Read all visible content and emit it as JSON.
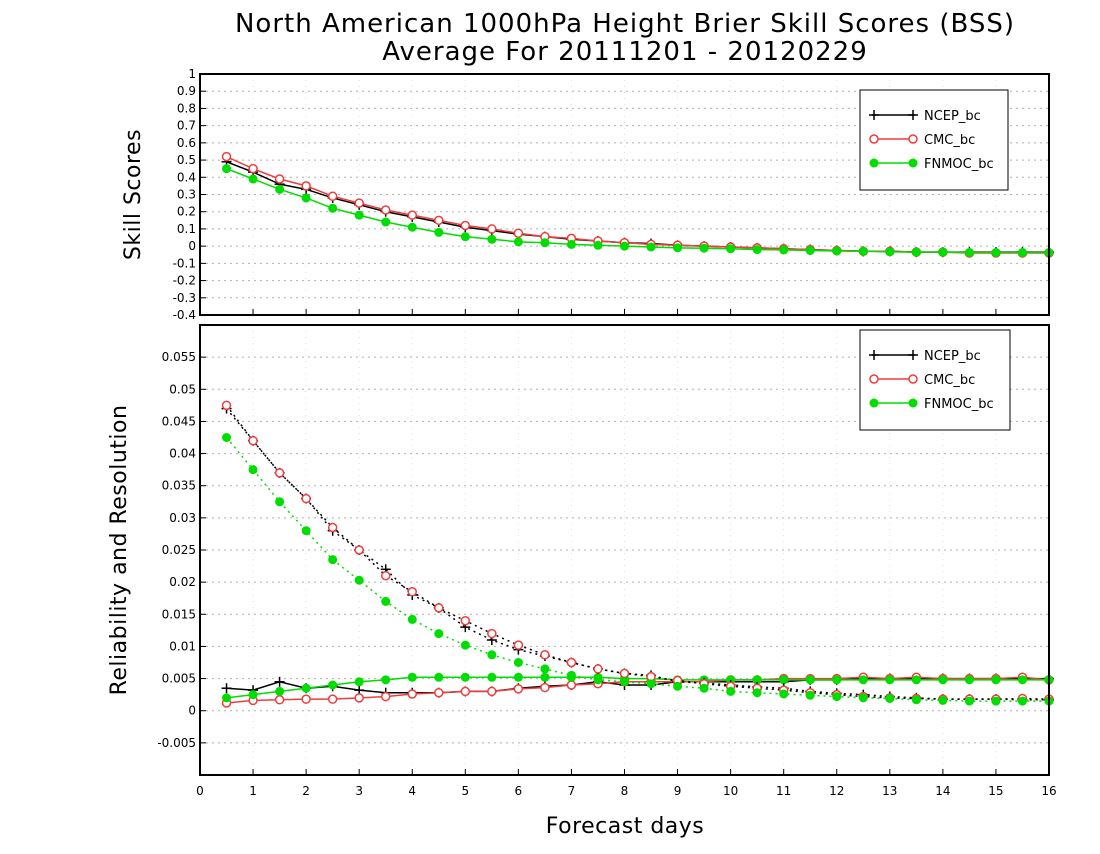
{
  "title": {
    "line1": "North American 1000hPa Height Brier Skill Scores (BSS)",
    "line2": "Average For 20111201 - 20120229"
  },
  "xaxis": {
    "label": "Forecast days",
    "range": [
      0,
      16
    ],
    "ticks": [
      "0",
      "1",
      "2",
      "3",
      "4",
      "5",
      "6",
      "7",
      "8",
      "9",
      "10",
      "11",
      "12",
      "13",
      "14",
      "15",
      "16"
    ]
  },
  "colors": {
    "NCEP_bc": "#000000",
    "CMC_bc": "#f03c3c",
    "FNMOC_bc": "#00dd00",
    "grid": "#b0b0b0"
  },
  "legend_entries": [
    "NCEP_bc",
    "CMC_bc",
    "FNMOC_bc"
  ],
  "chart_data": [
    {
      "type": "line",
      "ylabel": "Skill Scores",
      "xlim": [
        0,
        16
      ],
      "ylim": [
        -0.4,
        1
      ],
      "yticks": [
        "-0.4",
        "-0.3",
        "-0.2",
        "-0.1",
        "0",
        "0.1",
        "0.2",
        "0.3",
        "0.4",
        "0.5",
        "0.6",
        "0.7",
        "0.8",
        "0.9",
        "1"
      ],
      "grid": true,
      "legend": "top-right",
      "x": [
        0.5,
        1,
        1.5,
        2,
        2.5,
        3,
        3.5,
        4,
        4.5,
        5,
        5.5,
        6,
        6.5,
        7,
        7.5,
        8,
        8.5,
        9,
        9.5,
        10,
        10.5,
        11,
        11.5,
        12,
        12.5,
        13,
        13.5,
        14,
        14.5,
        15,
        15.5,
        16
      ],
      "series": [
        {
          "name": "NCEP_bc",
          "marker": "plus",
          "values": [
            0.49,
            0.43,
            0.36,
            0.33,
            0.28,
            0.24,
            0.2,
            0.17,
            0.14,
            0.11,
            0.09,
            0.07,
            0.055,
            0.04,
            0.03,
            0.02,
            0.015,
            0.005,
            0.0,
            -0.005,
            -0.01,
            -0.015,
            -0.02,
            -0.025,
            -0.03,
            -0.03,
            -0.035,
            -0.035,
            -0.035,
            -0.035,
            -0.035,
            -0.035
          ]
        },
        {
          "name": "CMC_bc",
          "marker": "open-circle",
          "values": [
            0.52,
            0.45,
            0.39,
            0.35,
            0.29,
            0.25,
            0.21,
            0.18,
            0.15,
            0.12,
            0.1,
            0.075,
            0.055,
            0.045,
            0.03,
            0.02,
            0.01,
            0.005,
            0.0,
            -0.005,
            -0.01,
            -0.015,
            -0.02,
            -0.025,
            -0.03,
            -0.03,
            -0.035,
            -0.035,
            -0.04,
            -0.04,
            -0.04,
            -0.04
          ]
        },
        {
          "name": "FNMOC_bc",
          "marker": "filled-circle",
          "values": [
            0.45,
            0.39,
            0.33,
            0.28,
            0.22,
            0.18,
            0.14,
            0.11,
            0.08,
            0.055,
            0.04,
            0.025,
            0.02,
            0.01,
            0.005,
            0.0,
            -0.005,
            -0.01,
            -0.012,
            -0.015,
            -0.02,
            -0.022,
            -0.025,
            -0.028,
            -0.03,
            -0.033,
            -0.035,
            -0.035,
            -0.037,
            -0.037,
            -0.037,
            -0.037
          ]
        }
      ]
    },
    {
      "type": "line",
      "ylabel": "Reliability and Resolution",
      "xlim": [
        0,
        16
      ],
      "ylim": [
        -0.01,
        0.06
      ],
      "yticks": [
        "-0.005",
        "0",
        "0.005",
        "0.01",
        "0.015",
        "0.02",
        "0.025",
        "0.03",
        "0.035",
        "0.04",
        "0.045",
        "0.05",
        "0.055"
      ],
      "grid": true,
      "legend": "top-right",
      "x": [
        0.5,
        1,
        1.5,
        2,
        2.5,
        3,
        3.5,
        4,
        4.5,
        5,
        5.5,
        6,
        6.5,
        7,
        7.5,
        8,
        8.5,
        9,
        9.5,
        10,
        10.5,
        11,
        11.5,
        12,
        12.5,
        13,
        13.5,
        14,
        14.5,
        15,
        15.5,
        16
      ],
      "series": [
        {
          "name": "NCEP_bc",
          "component": "reliability",
          "style": "solid",
          "marker": "plus",
          "values": [
            0.0035,
            0.0032,
            0.0045,
            0.0035,
            0.0038,
            0.0032,
            0.0028,
            0.0028,
            0.0028,
            0.003,
            0.003,
            0.0035,
            0.0038,
            0.004,
            0.0045,
            0.004,
            0.004,
            0.0045,
            0.0045,
            0.0045,
            0.0045,
            0.0045,
            0.0048,
            0.0048,
            0.005,
            0.005,
            0.005,
            0.005,
            0.005,
            0.005,
            0.005,
            0.005
          ]
        },
        {
          "name": "CMC_bc",
          "component": "reliability",
          "style": "solid",
          "marker": "open-circle",
          "values": [
            0.0012,
            0.0016,
            0.0017,
            0.0018,
            0.0018,
            0.002,
            0.0022,
            0.0026,
            0.0028,
            0.003,
            0.003,
            0.0034,
            0.0036,
            0.004,
            0.0042,
            0.0045,
            0.0045,
            0.0045,
            0.0045,
            0.0048,
            0.0048,
            0.005,
            0.005,
            0.005,
            0.0052,
            0.005,
            0.0052,
            0.005,
            0.005,
            0.005,
            0.0052,
            0.0048
          ]
        },
        {
          "name": "FNMOC_bc",
          "component": "reliability",
          "style": "solid",
          "marker": "filled-circle",
          "values": [
            0.002,
            0.0025,
            0.003,
            0.0035,
            0.004,
            0.0045,
            0.0048,
            0.0052,
            0.0052,
            0.0052,
            0.0052,
            0.0052,
            0.0052,
            0.0052,
            0.0052,
            0.005,
            0.005,
            0.0048,
            0.0048,
            0.0048,
            0.0048,
            0.0048,
            0.0048,
            0.0048,
            0.0048,
            0.0048,
            0.0048,
            0.0048,
            0.0048,
            0.0048,
            0.0048,
            0.0048
          ]
        },
        {
          "name": "NCEP_bc",
          "component": "resolution",
          "style": "dotted",
          "marker": "plus",
          "values": [
            0.047,
            0.042,
            0.037,
            0.033,
            0.028,
            0.025,
            0.022,
            0.018,
            0.016,
            0.013,
            0.011,
            0.0095,
            0.0085,
            0.0075,
            0.0065,
            0.0058,
            0.0055,
            0.0045,
            0.0043,
            0.004,
            0.0037,
            0.0035,
            0.003,
            0.0027,
            0.0025,
            0.0022,
            0.002,
            0.0018,
            0.0018,
            0.0018,
            0.0017,
            0.0017
          ]
        },
        {
          "name": "CMC_bc",
          "component": "resolution",
          "style": "dotted",
          "marker": "open-circle",
          "values": [
            0.0475,
            0.042,
            0.037,
            0.033,
            0.0285,
            0.025,
            0.021,
            0.0185,
            0.016,
            0.014,
            0.012,
            0.0102,
            0.0087,
            0.0075,
            0.0065,
            0.0058,
            0.0053,
            0.0047,
            0.0042,
            0.0038,
            0.0035,
            0.0032,
            0.0028,
            0.0025,
            0.0022,
            0.002,
            0.0019,
            0.0018,
            0.0018,
            0.0018,
            0.0019,
            0.0018
          ]
        },
        {
          "name": "FNMOC_bc",
          "component": "resolution",
          "style": "dotted",
          "marker": "filled-circle",
          "values": [
            0.0425,
            0.0375,
            0.0325,
            0.028,
            0.0235,
            0.0203,
            0.017,
            0.0142,
            0.012,
            0.0102,
            0.0087,
            0.0075,
            0.0065,
            0.0055,
            0.0048,
            0.0045,
            0.0042,
            0.0038,
            0.0035,
            0.003,
            0.0028,
            0.0026,
            0.0024,
            0.0022,
            0.002,
            0.0019,
            0.0017,
            0.0016,
            0.0015,
            0.0015,
            0.0015,
            0.0015
          ]
        }
      ]
    }
  ]
}
